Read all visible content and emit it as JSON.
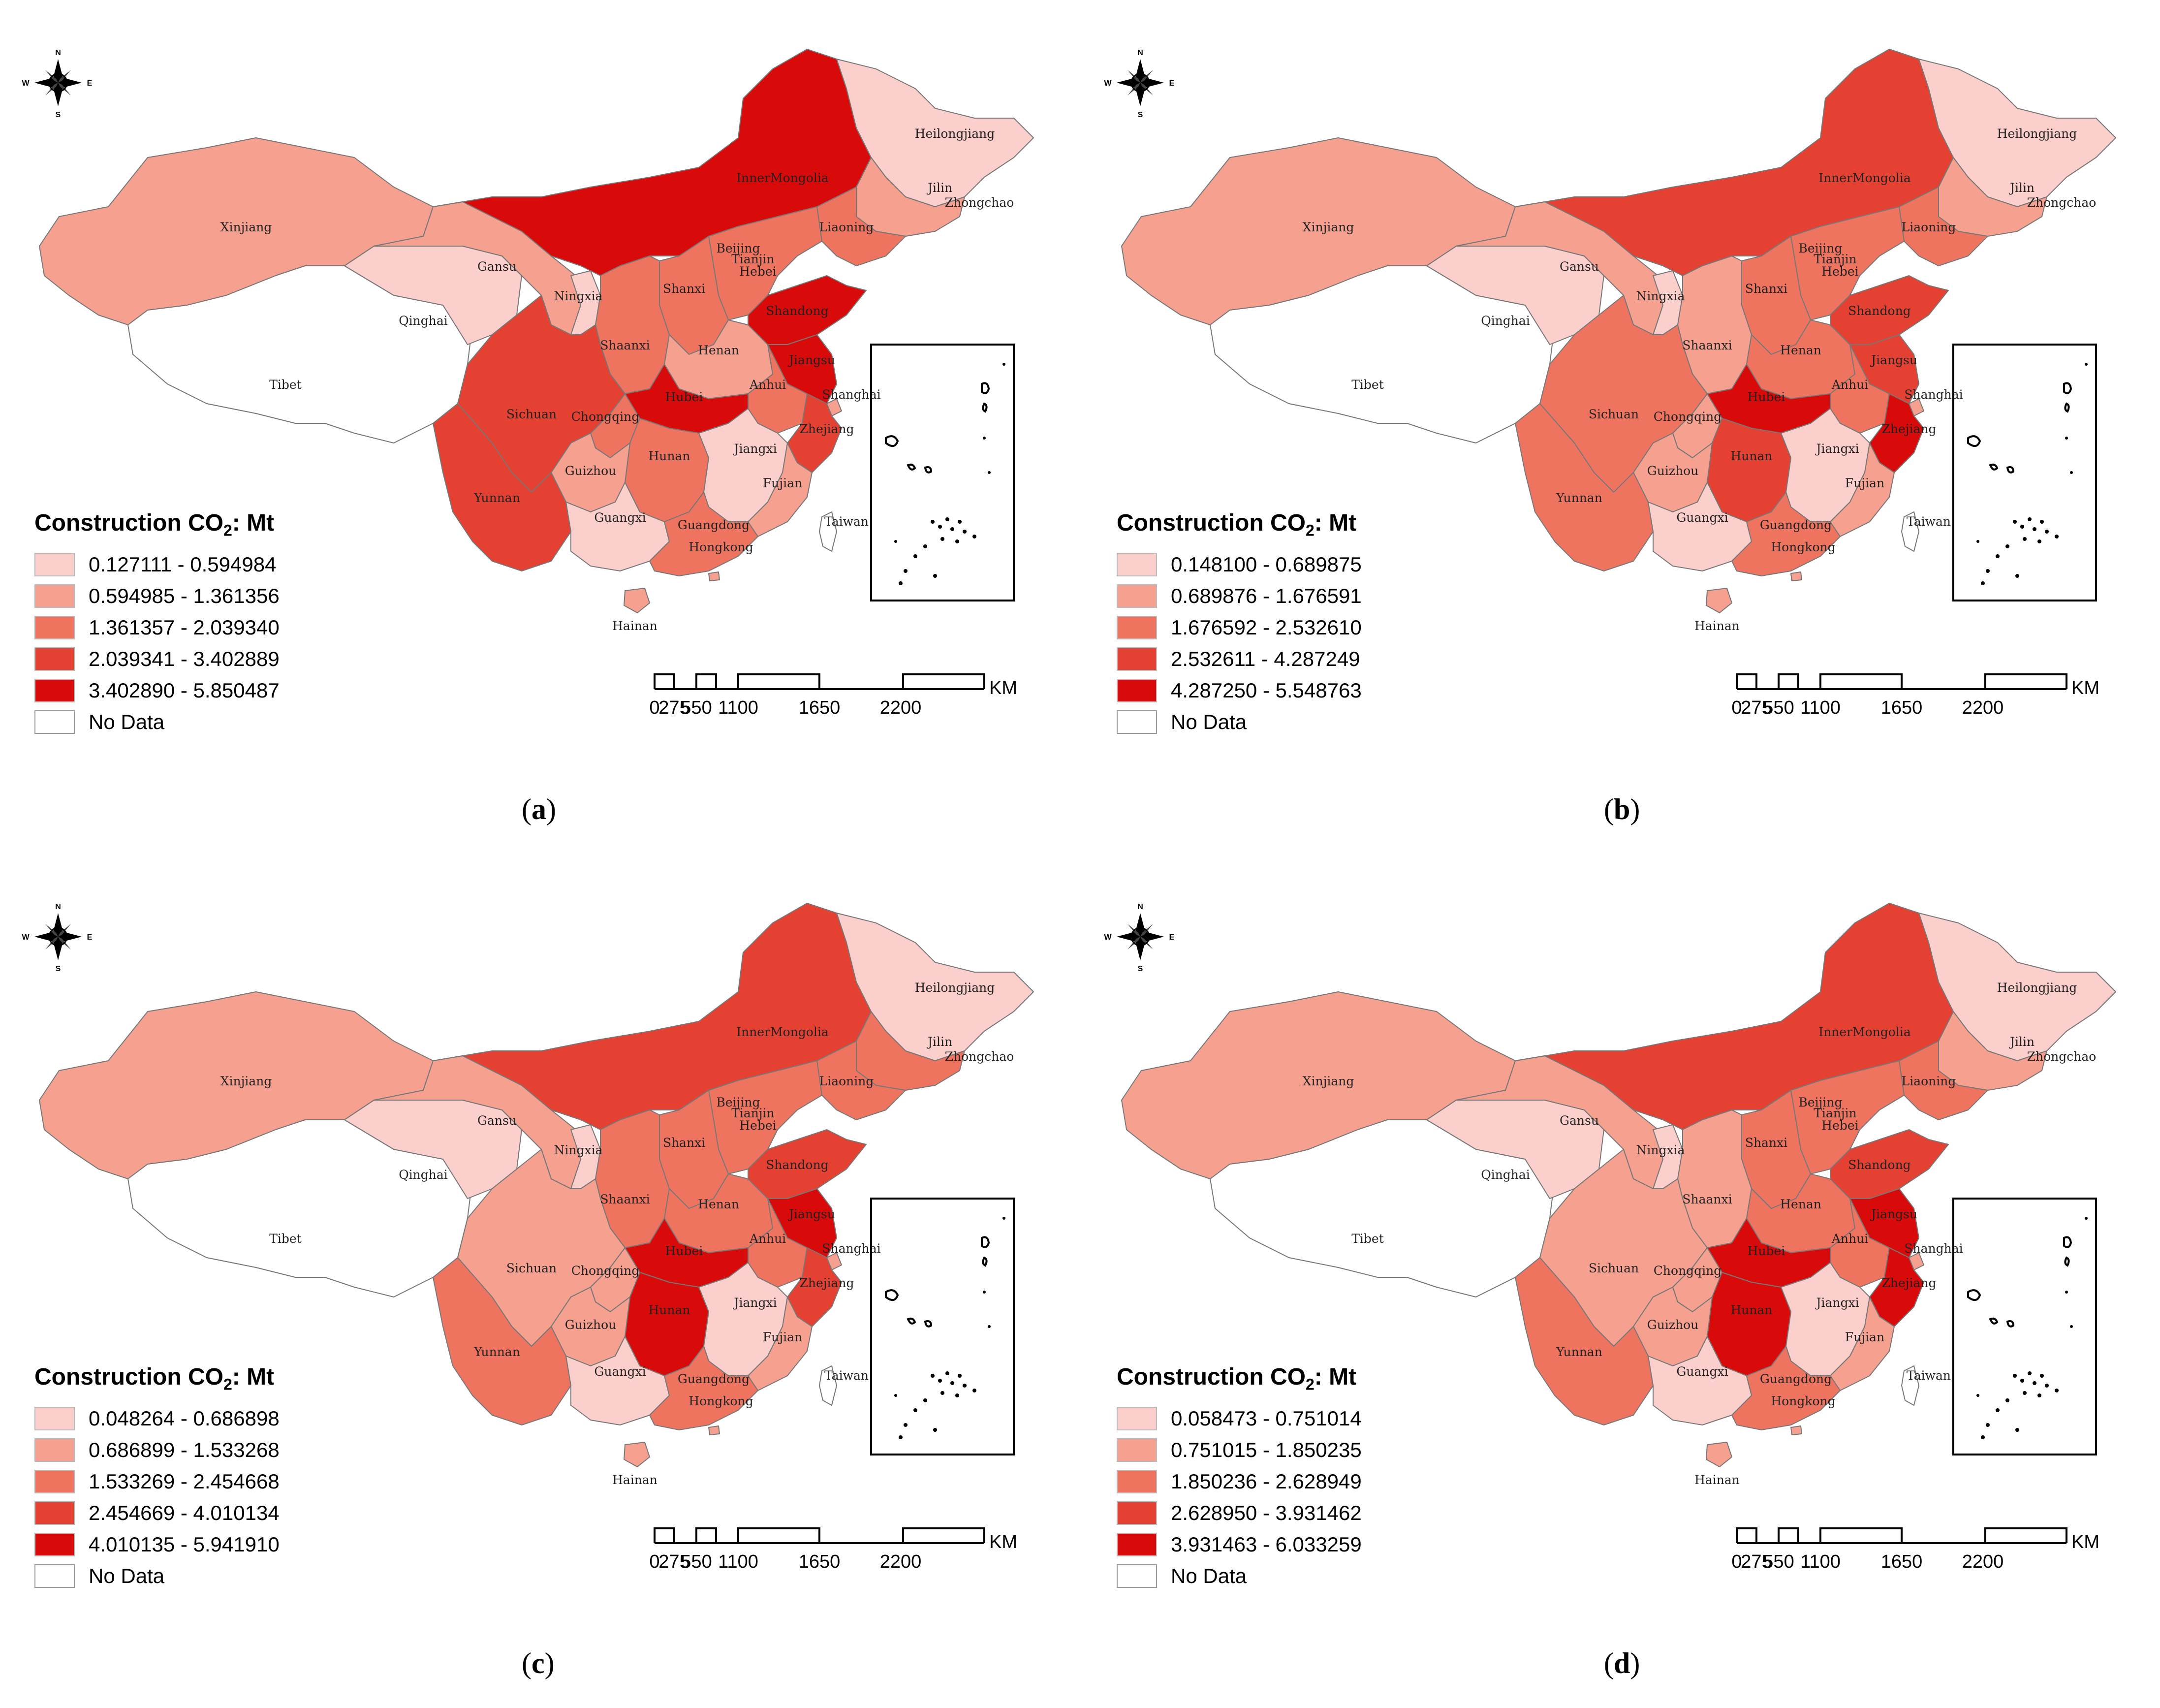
{
  "legend_title": {
    "prefix": "Construction CO",
    "sub": "2",
    "suffix": ": Mt"
  },
  "no_data_label": "No Data",
  "scale_bar": {
    "unit": "KM",
    "ticks": [
      "0",
      "275",
      "550",
      "1100",
      "1650",
      "2200"
    ]
  },
  "compass": {
    "n": "N",
    "s": "S",
    "e": "E",
    "w": "W"
  },
  "class_colors": [
    "#fbcfcc",
    "#f6a090",
    "#ef7460",
    "#e44132",
    "#d90a0a"
  ],
  "no_data_color": "#ffffff",
  "province_labels": {
    "xinjiang": "Xinjiang",
    "tibet": "Tibet",
    "qinghai": "Qinghai",
    "gansu": "Gansu",
    "innermongolia": "InnerMongolia",
    "heilongjiang": "Heilongjiang",
    "jilin": "Jilin",
    "liaoning": "Liaoning",
    "beijing": "Beijing",
    "tianjin": "Tianjin",
    "hebei": "Hebei",
    "shanxi": "Shanxi",
    "ningxia": "Ningxia",
    "shaanxi": "Shaanxi",
    "henan": "Henan",
    "shandong": "Shandong",
    "jiangsu": "Jiangsu",
    "anhui": "Anhui",
    "shanghai": "Shanghai",
    "hubei": "Hubei",
    "zhejiang": "Zhejiang",
    "sichuan": "Sichuan",
    "chongqing": "Chongqing",
    "hunan": "Hunan",
    "jiangxi": "Jiangxi",
    "guizhou": "Guizhou",
    "yunnan": "Yunnan",
    "guangxi": "Guangxi",
    "guangdong": "Guangdong",
    "fujian": "Fujian",
    "taiwan": "Taiwan",
    "hainan": "Hainan",
    "hongkong": "Hongkong",
    "zhongchao": "Zhongchao"
  },
  "panels": [
    {
      "caption": "a",
      "legend_ranges": [
        "0.127111 - 0.594984",
        "0.594985 - 1.361356",
        "1.361357 - 2.039340",
        "2.039341 - 3.402889",
        "3.402890 - 5.850487"
      ],
      "province_class": {
        "xinjiang": 1,
        "tibet": -1,
        "qinghai": 0,
        "gansu": 1,
        "innermongolia": 4,
        "heilongjiang": 0,
        "jilin": 1,
        "liaoning": 2,
        "beijing": 1,
        "tianjin": 1,
        "hebei": 2,
        "shanxi": 2,
        "ningxia": 0,
        "shaanxi": 2,
        "henan": 1,
        "shandong": 4,
        "jiangsu": 4,
        "anhui": 2,
        "shanghai": 1,
        "hubei": 4,
        "zhejiang": 3,
        "sichuan": 3,
        "chongqing": 2,
        "hunan": 2,
        "jiangxi": 0,
        "guizhou": 1,
        "yunnan": 3,
        "guangxi": 0,
        "guangdong": 2,
        "fujian": 1,
        "taiwan": -1,
        "hainan": 1,
        "hongkong": 1
      }
    },
    {
      "caption": "b",
      "legend_ranges": [
        "0.148100 - 0.689875",
        "0.689876 - 1.676591",
        "1.676592 - 2.532610",
        "2.532611 - 4.287249",
        "4.287250 - 5.548763"
      ],
      "province_class": {
        "xinjiang": 1,
        "tibet": -1,
        "qinghai": 0,
        "gansu": 1,
        "innermongolia": 3,
        "heilongjiang": 0,
        "jilin": 1,
        "liaoning": 2,
        "beijing": 1,
        "tianjin": 1,
        "hebei": 2,
        "shanxi": 2,
        "ningxia": 0,
        "shaanxi": 1,
        "henan": 2,
        "shandong": 3,
        "jiangsu": 3,
        "anhui": 2,
        "shanghai": 1,
        "hubei": 4,
        "zhejiang": 4,
        "sichuan": 2,
        "chongqing": 1,
        "hunan": 3,
        "jiangxi": 0,
        "guizhou": 1,
        "yunnan": 2,
        "guangxi": 0,
        "guangdong": 2,
        "fujian": 1,
        "taiwan": -1,
        "hainan": 1,
        "hongkong": 1
      }
    },
    {
      "caption": "c",
      "legend_ranges": [
        "0.048264 - 0.686898",
        "0.686899 - 1.533268",
        "1.533269 - 2.454668",
        "2.454669 - 4.010134",
        "4.010135 - 5.941910"
      ],
      "province_class": {
        "xinjiang": 1,
        "tibet": -1,
        "qinghai": 0,
        "gansu": 1,
        "innermongolia": 3,
        "heilongjiang": 0,
        "jilin": 2,
        "liaoning": 2,
        "beijing": 1,
        "tianjin": 1,
        "hebei": 2,
        "shanxi": 2,
        "ningxia": 0,
        "shaanxi": 2,
        "henan": 2,
        "shandong": 3,
        "jiangsu": 4,
        "anhui": 2,
        "shanghai": 1,
        "hubei": 4,
        "zhejiang": 3,
        "sichuan": 1,
        "chongqing": 1,
        "hunan": 4,
        "jiangxi": 0,
        "guizhou": 1,
        "yunnan": 2,
        "guangxi": 0,
        "guangdong": 2,
        "fujian": 1,
        "taiwan": -1,
        "hainan": 1,
        "hongkong": 1
      }
    },
    {
      "caption": "d",
      "legend_ranges": [
        "0.058473 - 0.751014",
        "0.751015 - 1.850235",
        "1.850236 - 2.628949",
        "2.628950 - 3.931462",
        "3.931463 - 6.033259"
      ],
      "province_class": {
        "xinjiang": 1,
        "tibet": -1,
        "qinghai": 0,
        "gansu": 1,
        "innermongolia": 3,
        "heilongjiang": 0,
        "jilin": 1,
        "liaoning": 2,
        "beijing": 1,
        "tianjin": 1,
        "hebei": 2,
        "shanxi": 2,
        "ningxia": 0,
        "shaanxi": 1,
        "henan": 2,
        "shandong": 3,
        "jiangsu": 4,
        "anhui": 2,
        "shanghai": 1,
        "hubei": 4,
        "zhejiang": 4,
        "sichuan": 1,
        "chongqing": 1,
        "hunan": 4,
        "jiangxi": 0,
        "guizhou": 1,
        "yunnan": 2,
        "guangxi": 0,
        "guangdong": 2,
        "fujian": 1,
        "taiwan": -1,
        "hainan": 1,
        "hongkong": 1
      }
    }
  ]
}
